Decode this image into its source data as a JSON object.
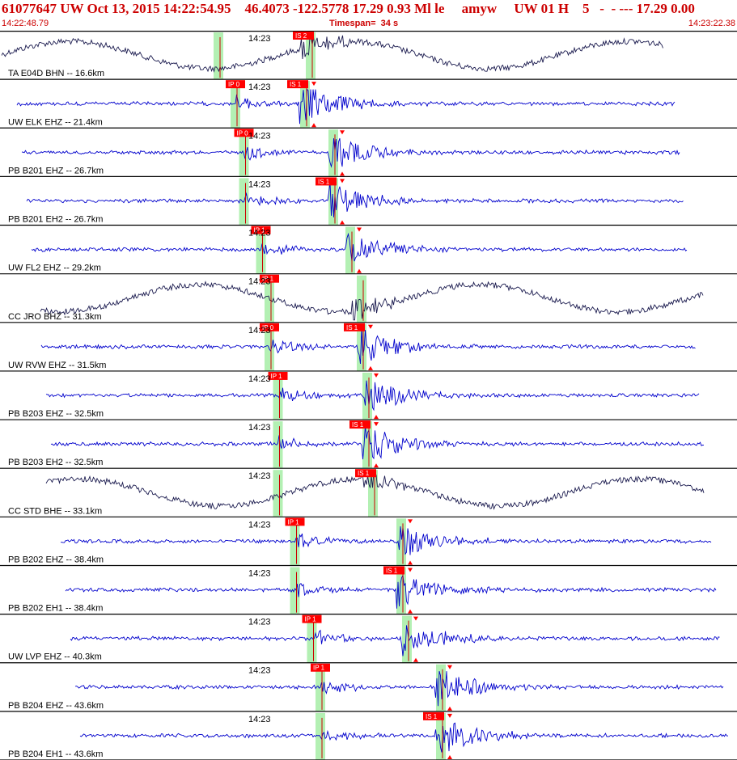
{
  "header": {
    "event_id": "61077647",
    "network": "UW",
    "date": "Oct 13, 2015",
    "origin_time": "14:22:54.95",
    "lat": "46.4073",
    "lon": "-122.5778",
    "depth": "17.29",
    "magnitude": "0.93",
    "mag_type": "Ml",
    "event_type": "le",
    "analyst": "amyw",
    "source": "UW",
    "version": "01",
    "quality_flag": "H",
    "phase_count": "5",
    "trailing": "- - --- 17.29 0.00",
    "line": "61077647 UW Oct 13, 2015 14:22:54.95    46.4073 -122.5778 17.29 0.93 Ml le     amyw     UW 01 H    5   -  - --- 17.29 0.00",
    "start_time": "14:22:48.79",
    "timespan": "Timespan=  34 s",
    "end_time": "14:23:22.38"
  },
  "colors": {
    "header_text": "#cc0000",
    "trace_blue": "#0000cc",
    "trace_dark": "#1a1a4e",
    "pick_green": "#b3f0b3",
    "pick_red": "#ff0000",
    "pick_line": "#cc0000",
    "separator": "#000000"
  },
  "chart_data": {
    "type": "line",
    "title": "",
    "time_window": {
      "start": "14:22:48.79",
      "end": "14:23:22.38",
      "span_s": 34
    },
    "minute_marker_label": "14:23",
    "traces": [
      {
        "label": "TA E04D BHN -- 16.6km",
        "station": "E04D",
        "channel": "BHN",
        "distance_km": 16.6,
        "style": "dark-lowfreq",
        "p_time_s": 2.7,
        "s_time_s": 5.6,
        "p_label": "",
        "s_label": "IS 2"
      },
      {
        "label": "UW ELK EHZ -- 21.4km",
        "station": "ELK",
        "channel": "EHZ",
        "distance_km": 21.4,
        "style": "blue",
        "p_time_s": 2.9,
        "s_time_s": 5.5,
        "p_label": "IP 0",
        "s_label": "IS 1"
      },
      {
        "label": "PB B201 EHZ -- 26.7km",
        "station": "B201",
        "channel": "EHZ",
        "distance_km": 26.7,
        "style": "blue",
        "p_time_s": 3.0,
        "s_time_s": 6.0,
        "p_label": "IP 0",
        "s_label": ""
      },
      {
        "label": "PB B201 EH2 -- 26.7km",
        "station": "B201",
        "channel": "EH2",
        "distance_km": 26.7,
        "style": "blue",
        "p_time_s": 3.0,
        "s_time_s": 6.0,
        "p_label": "",
        "s_label": "IS 1"
      },
      {
        "label": "UW FL2 EHZ -- 29.2km",
        "station": "FL2",
        "channel": "EHZ",
        "distance_km": 29.2,
        "style": "blue",
        "p_time_s": 3.2,
        "s_time_s": 6.3,
        "p_label": "IP 1",
        "s_label": ""
      },
      {
        "label": "CC JRO BHZ -- 31.3km",
        "station": "JRO",
        "channel": "BHZ",
        "distance_km": 31.3,
        "style": "dark-lowfreq",
        "p_time_s": 3.3,
        "s_time_s": 6.5,
        "p_label": "IP 1",
        "s_label": ""
      },
      {
        "label": "UW RVW EHZ -- 31.5km",
        "station": "RVW",
        "channel": "EHZ",
        "distance_km": 31.5,
        "style": "blue",
        "p_time_s": 3.3,
        "s_time_s": 6.5,
        "p_label": "IP 0",
        "s_label": "IS 1"
      },
      {
        "label": "PB B203 EHZ -- 32.5km",
        "station": "B203",
        "channel": "EHZ",
        "distance_km": 32.5,
        "style": "blue",
        "p_time_s": 3.4,
        "s_time_s": 6.6,
        "p_label": "IP 1",
        "s_label": ""
      },
      {
        "label": "PB B203 EH2 -- 32.5km",
        "station": "B203",
        "channel": "EH2",
        "distance_km": 32.5,
        "style": "blue",
        "p_time_s": 3.4,
        "s_time_s": 6.6,
        "p_label": "",
        "s_label": "IS 1"
      },
      {
        "label": "CC STD BHE -- 33.1km",
        "station": "STD",
        "channel": "BHE",
        "distance_km": 33.1,
        "style": "dark-lowfreq",
        "p_time_s": 3.4,
        "s_time_s": 6.7,
        "p_label": "",
        "s_label": "IS 1"
      },
      {
        "label": "PB B202 EHZ -- 38.4km",
        "station": "B202",
        "channel": "EHZ",
        "distance_km": 38.4,
        "style": "blue",
        "p_time_s": 3.6,
        "s_time_s": 7.2,
        "p_label": "IP 1",
        "s_label": ""
      },
      {
        "label": "PB B202 EH1 -- 38.4km",
        "station": "B202",
        "channel": "EH1",
        "distance_km": 38.4,
        "style": "blue",
        "p_time_s": 3.6,
        "s_time_s": 7.2,
        "p_label": "",
        "s_label": "IS 1"
      },
      {
        "label": "UW LVP EHZ -- 40.3km",
        "station": "LVP",
        "channel": "EHZ",
        "distance_km": 40.3,
        "style": "blue",
        "p_time_s": 3.8,
        "s_time_s": 7.3,
        "p_label": "IP 1",
        "s_label": ""
      },
      {
        "label": "PB B204 EHZ -- 43.6km",
        "station": "B204",
        "channel": "EHZ",
        "distance_km": 43.6,
        "style": "blue",
        "p_time_s": 3.9,
        "s_time_s": 7.9,
        "p_label": "IP 1",
        "s_label": ""
      },
      {
        "label": "PB B204 EH1 -- 43.6km",
        "station": "B204",
        "channel": "EH1",
        "distance_km": 43.6,
        "style": "blue",
        "p_time_s": 3.9,
        "s_time_s": 7.9,
        "p_label": "",
        "s_label": "IS 1"
      }
    ]
  }
}
